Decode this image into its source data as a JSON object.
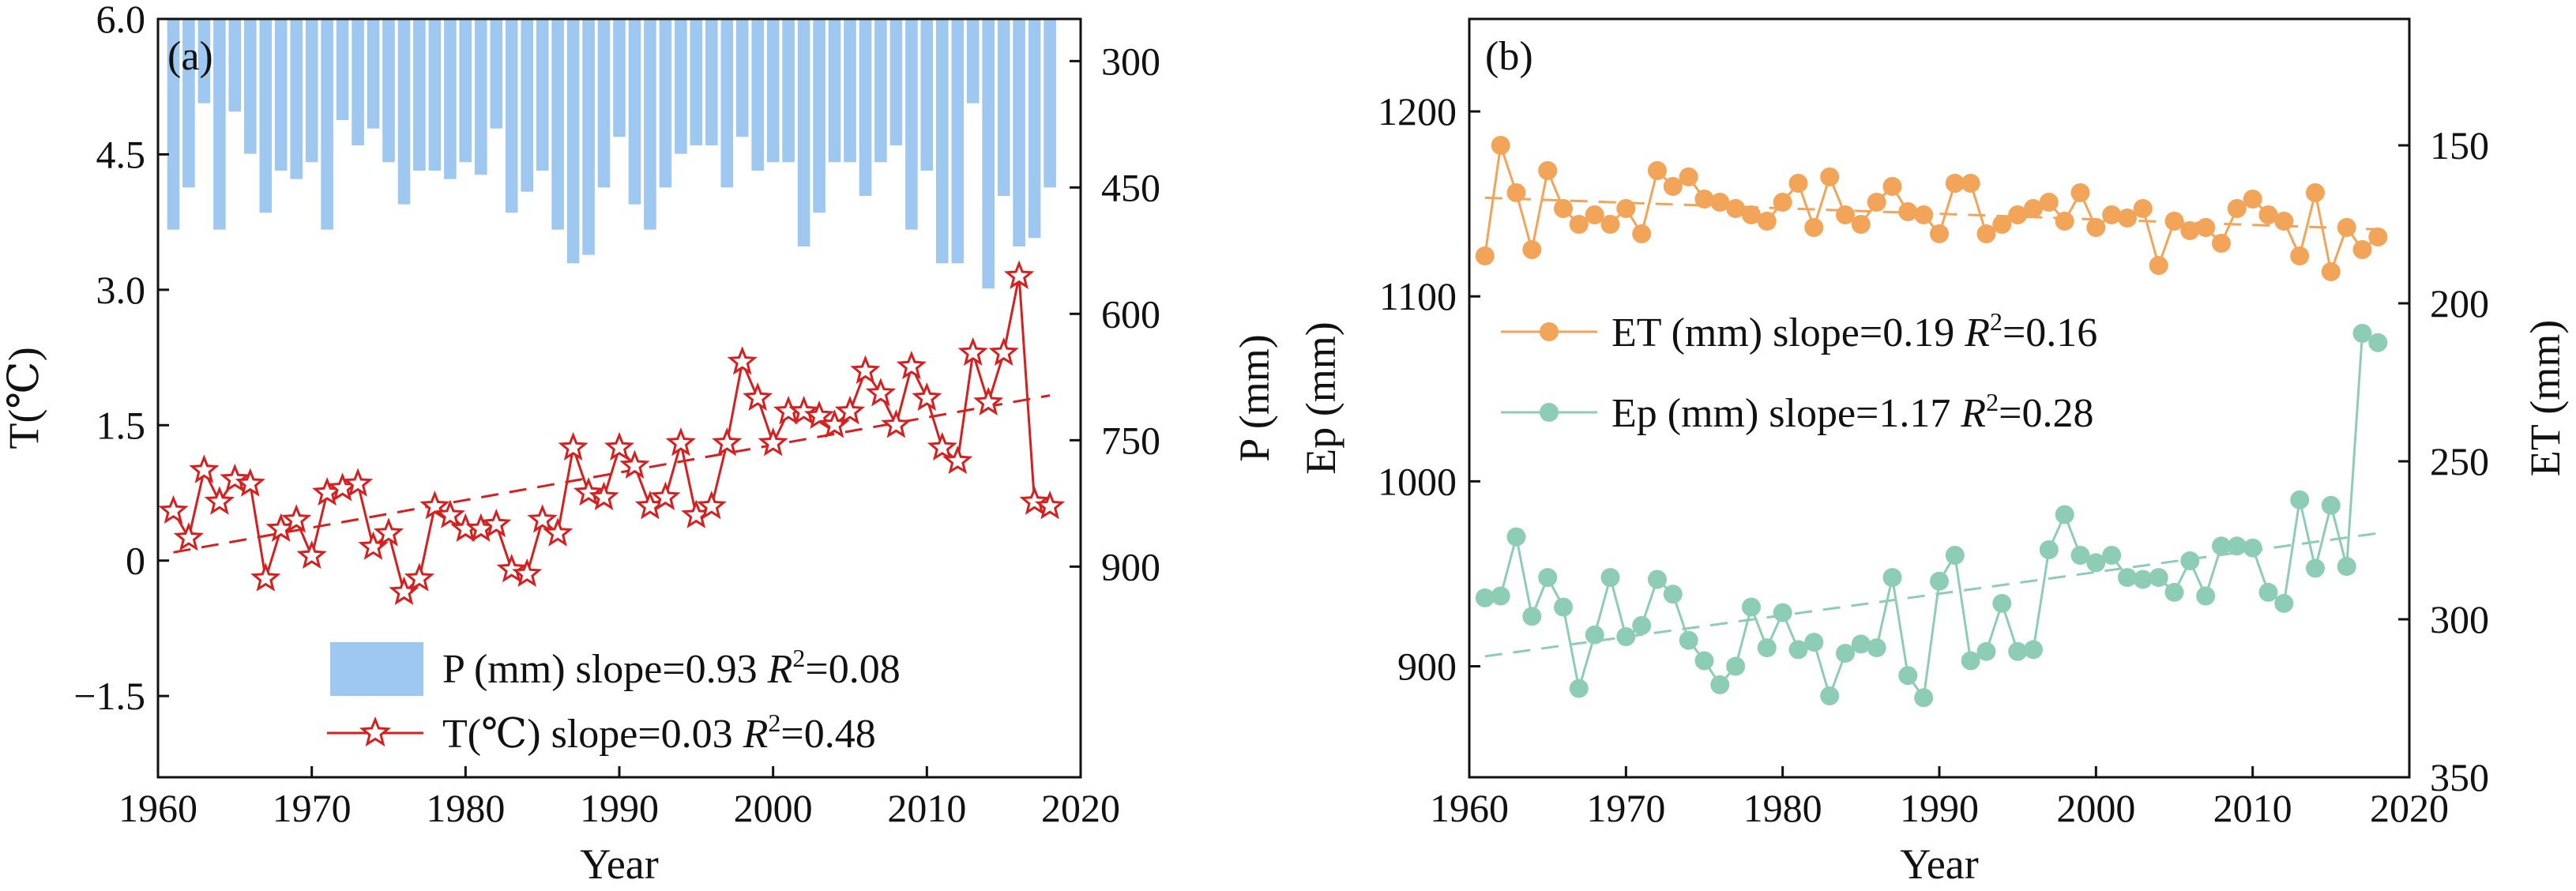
{
  "chart_data": [
    {
      "type": "bar+line",
      "panel_label": "(a)",
      "xlabel": "Year",
      "ylabel_left": "T(℃)",
      "ylabel_right": "P (mm)",
      "xlim": [
        1960,
        2020
      ],
      "xticks": [
        "1960",
        "1970",
        "1980",
        "1990",
        "2000",
        "2010",
        "2020"
      ],
      "ylim_left": [
        -2.4,
        6.0
      ],
      "yticks_left": [
        "-1.5",
        "0",
        "1.5",
        "3.0",
        "4.5",
        "6.0"
      ],
      "ylim_right_inverted": [
        250,
        1150
      ],
      "yticks_right": [
        "300",
        "450",
        "600",
        "750",
        "900"
      ],
      "x": [
        1961,
        1962,
        1963,
        1964,
        1965,
        1966,
        1967,
        1968,
        1969,
        1970,
        1971,
        1972,
        1973,
        1974,
        1975,
        1976,
        1977,
        1978,
        1979,
        1980,
        1981,
        1982,
        1983,
        1984,
        1985,
        1986,
        1987,
        1988,
        1989,
        1990,
        1991,
        1992,
        1993,
        1994,
        1995,
        1996,
        1997,
        1998,
        1999,
        2000,
        2001,
        2002,
        2003,
        2004,
        2005,
        2006,
        2007,
        2008,
        2009,
        2010,
        2011,
        2012,
        2013,
        2014,
        2015,
        2016,
        2017,
        2018
      ],
      "series": [
        {
          "name": "P (mm)",
          "kind": "bar",
          "axis": "right",
          "color": "#9ec8ef",
          "values": [
            500,
            450,
            350,
            500,
            360,
            410,
            480,
            430,
            440,
            420,
            500,
            370,
            400,
            380,
            420,
            470,
            430,
            430,
            440,
            420,
            435,
            380,
            480,
            455,
            430,
            500,
            540,
            530,
            450,
            390,
            470,
            500,
            450,
            410,
            400,
            400,
            450,
            390,
            430,
            420,
            420,
            520,
            480,
            420,
            420,
            460,
            420,
            400,
            500,
            430,
            540,
            540,
            350,
            570,
            460,
            520,
            510,
            450
          ],
          "trend": {
            "slope": 0.93,
            "r2": 0.08
          },
          "legend_label": "P (mm) slope=0.93 ",
          "legend_r2_label": "=0.08"
        },
        {
          "name": "T(℃)",
          "kind": "line",
          "marker": "star",
          "axis": "left",
          "color": "#d61f1f",
          "values": [
            0.55,
            0.25,
            1.0,
            0.65,
            0.9,
            0.85,
            -0.2,
            0.35,
            0.45,
            0.05,
            0.75,
            0.8,
            0.85,
            0.15,
            0.3,
            -0.35,
            -0.2,
            0.6,
            0.5,
            0.35,
            0.35,
            0.4,
            -0.1,
            -0.15,
            0.45,
            0.3,
            1.25,
            0.75,
            0.7,
            1.25,
            1.05,
            0.6,
            0.7,
            1.3,
            0.5,
            0.6,
            1.3,
            2.2,
            1.8,
            1.3,
            1.65,
            1.65,
            1.6,
            1.5,
            1.65,
            2.1,
            1.85,
            1.5,
            2.15,
            1.8,
            1.25,
            1.1,
            2.3,
            1.75,
            2.3,
            3.15,
            0.65,
            0.6
          ],
          "trend": {
            "slope": 0.03,
            "r2": 0.48
          },
          "legend_label": "T(℃) slope=0.03 ",
          "legend_r2_label": "=0.48"
        }
      ]
    },
    {
      "type": "line",
      "panel_label": "(b)",
      "xlabel": "Year",
      "ylabel_left": "Ep (mm)",
      "ylabel_right": "ET (mm)",
      "xlim": [
        1960,
        2020
      ],
      "xticks": [
        "1960",
        "1970",
        "1980",
        "1990",
        "2000",
        "2010",
        "2020"
      ],
      "ylim_left": [
        840,
        1250
      ],
      "yticks_left": [
        "900",
        "1000",
        "1100",
        "1200"
      ],
      "ylim_right_inverted": [
        110,
        350
      ],
      "yticks_right": [
        "150",
        "200",
        "250",
        "300",
        "350"
      ],
      "x": [
        1961,
        1962,
        1963,
        1964,
        1965,
        1966,
        1967,
        1968,
        1969,
        1970,
        1971,
        1972,
        1973,
        1974,
        1975,
        1976,
        1977,
        1978,
        1979,
        1980,
        1981,
        1982,
        1983,
        1984,
        1985,
        1986,
        1987,
        1988,
        1989,
        1990,
        1991,
        1992,
        1993,
        1994,
        1995,
        1996,
        1997,
        1998,
        1999,
        2000,
        2001,
        2002,
        2003,
        2004,
        2005,
        2006,
        2007,
        2008,
        2009,
        2010,
        2011,
        2012,
        2013,
        2014,
        2015,
        2016,
        2017,
        2018
      ],
      "series": [
        {
          "name": "ET (mm)",
          "axis": "right",
          "color": "#f2a458",
          "values": [
            185,
            150,
            165,
            183,
            158,
            170,
            175,
            172,
            175,
            170,
            178,
            158,
            163,
            160,
            167,
            168,
            170,
            172,
            174,
            168,
            162,
            176,
            160,
            172,
            175,
            168,
            163,
            171,
            172,
            178,
            162,
            162,
            178,
            175,
            172,
            170,
            168,
            174,
            165,
            176,
            172,
            173,
            170,
            188,
            174,
            177,
            176,
            181,
            170,
            167,
            172,
            174,
            185,
            165,
            190,
            176,
            183,
            179
          ],
          "trend": {
            "slope": 0.19,
            "r2": 0.16
          },
          "legend_label": "ET (mm) slope=0.19 ",
          "legend_r2_label": "=0.16"
        },
        {
          "name": "Ep (mm)",
          "axis": "left",
          "color": "#8ecdb5",
          "values": [
            937,
            938,
            970,
            927,
            948,
            932,
            888,
            917,
            948,
            916,
            922,
            947,
            939,
            914,
            903,
            890,
            900,
            932,
            910,
            929,
            909,
            913,
            884,
            907,
            912,
            910,
            948,
            895,
            883,
            946,
            960,
            903,
            908,
            934,
            908,
            909,
            963,
            982,
            960,
            956,
            960,
            948,
            947,
            948,
            940,
            957,
            938,
            965,
            965,
            964,
            940,
            934,
            990,
            953,
            987,
            954,
            1080,
            1075
          ],
          "trend": {
            "slope": 1.17,
            "r2": 0.28
          },
          "legend_label": "Ep (mm) slope=1.17 ",
          "legend_r2_label": "=0.28"
        }
      ]
    }
  ],
  "legend_r2_symbol": "R",
  "legend_r2_exponent": "2"
}
